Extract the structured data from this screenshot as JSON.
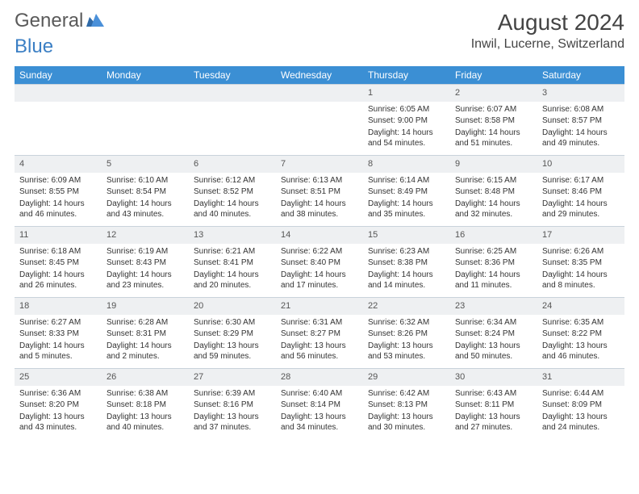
{
  "logo": {
    "text1": "General",
    "text2": "Blue"
  },
  "title": "August 2024",
  "location": "Inwil, Lucerne, Switzerland",
  "colors": {
    "header_bg": "#3b8fd4",
    "header_text": "#ffffff",
    "daynum_bg": "#eef0f2",
    "border": "#c9d2db",
    "logo_gray": "#5a5a5a",
    "logo_blue": "#3b7fc4"
  },
  "weekdays": [
    "Sunday",
    "Monday",
    "Tuesday",
    "Wednesday",
    "Thursday",
    "Friday",
    "Saturday"
  ],
  "weeks": [
    [
      null,
      null,
      null,
      null,
      {
        "n": "1",
        "sr": "6:05 AM",
        "ss": "9:00 PM",
        "dl": "14 hours and 54 minutes."
      },
      {
        "n": "2",
        "sr": "6:07 AM",
        "ss": "8:58 PM",
        "dl": "14 hours and 51 minutes."
      },
      {
        "n": "3",
        "sr": "6:08 AM",
        "ss": "8:57 PM",
        "dl": "14 hours and 49 minutes."
      }
    ],
    [
      {
        "n": "4",
        "sr": "6:09 AM",
        "ss": "8:55 PM",
        "dl": "14 hours and 46 minutes."
      },
      {
        "n": "5",
        "sr": "6:10 AM",
        "ss": "8:54 PM",
        "dl": "14 hours and 43 minutes."
      },
      {
        "n": "6",
        "sr": "6:12 AM",
        "ss": "8:52 PM",
        "dl": "14 hours and 40 minutes."
      },
      {
        "n": "7",
        "sr": "6:13 AM",
        "ss": "8:51 PM",
        "dl": "14 hours and 38 minutes."
      },
      {
        "n": "8",
        "sr": "6:14 AM",
        "ss": "8:49 PM",
        "dl": "14 hours and 35 minutes."
      },
      {
        "n": "9",
        "sr": "6:15 AM",
        "ss": "8:48 PM",
        "dl": "14 hours and 32 minutes."
      },
      {
        "n": "10",
        "sr": "6:17 AM",
        "ss": "8:46 PM",
        "dl": "14 hours and 29 minutes."
      }
    ],
    [
      {
        "n": "11",
        "sr": "6:18 AM",
        "ss": "8:45 PM",
        "dl": "14 hours and 26 minutes."
      },
      {
        "n": "12",
        "sr": "6:19 AM",
        "ss": "8:43 PM",
        "dl": "14 hours and 23 minutes."
      },
      {
        "n": "13",
        "sr": "6:21 AM",
        "ss": "8:41 PM",
        "dl": "14 hours and 20 minutes."
      },
      {
        "n": "14",
        "sr": "6:22 AM",
        "ss": "8:40 PM",
        "dl": "14 hours and 17 minutes."
      },
      {
        "n": "15",
        "sr": "6:23 AM",
        "ss": "8:38 PM",
        "dl": "14 hours and 14 minutes."
      },
      {
        "n": "16",
        "sr": "6:25 AM",
        "ss": "8:36 PM",
        "dl": "14 hours and 11 minutes."
      },
      {
        "n": "17",
        "sr": "6:26 AM",
        "ss": "8:35 PM",
        "dl": "14 hours and 8 minutes."
      }
    ],
    [
      {
        "n": "18",
        "sr": "6:27 AM",
        "ss": "8:33 PM",
        "dl": "14 hours and 5 minutes."
      },
      {
        "n": "19",
        "sr": "6:28 AM",
        "ss": "8:31 PM",
        "dl": "14 hours and 2 minutes."
      },
      {
        "n": "20",
        "sr": "6:30 AM",
        "ss": "8:29 PM",
        "dl": "13 hours and 59 minutes."
      },
      {
        "n": "21",
        "sr": "6:31 AM",
        "ss": "8:27 PM",
        "dl": "13 hours and 56 minutes."
      },
      {
        "n": "22",
        "sr": "6:32 AM",
        "ss": "8:26 PM",
        "dl": "13 hours and 53 minutes."
      },
      {
        "n": "23",
        "sr": "6:34 AM",
        "ss": "8:24 PM",
        "dl": "13 hours and 50 minutes."
      },
      {
        "n": "24",
        "sr": "6:35 AM",
        "ss": "8:22 PM",
        "dl": "13 hours and 46 minutes."
      }
    ],
    [
      {
        "n": "25",
        "sr": "6:36 AM",
        "ss": "8:20 PM",
        "dl": "13 hours and 43 minutes."
      },
      {
        "n": "26",
        "sr": "6:38 AM",
        "ss": "8:18 PM",
        "dl": "13 hours and 40 minutes."
      },
      {
        "n": "27",
        "sr": "6:39 AM",
        "ss": "8:16 PM",
        "dl": "13 hours and 37 minutes."
      },
      {
        "n": "28",
        "sr": "6:40 AM",
        "ss": "8:14 PM",
        "dl": "13 hours and 34 minutes."
      },
      {
        "n": "29",
        "sr": "6:42 AM",
        "ss": "8:13 PM",
        "dl": "13 hours and 30 minutes."
      },
      {
        "n": "30",
        "sr": "6:43 AM",
        "ss": "8:11 PM",
        "dl": "13 hours and 27 minutes."
      },
      {
        "n": "31",
        "sr": "6:44 AM",
        "ss": "8:09 PM",
        "dl": "13 hours and 24 minutes."
      }
    ]
  ],
  "labels": {
    "sunrise": "Sunrise:",
    "sunset": "Sunset:",
    "daylight": "Daylight:"
  }
}
